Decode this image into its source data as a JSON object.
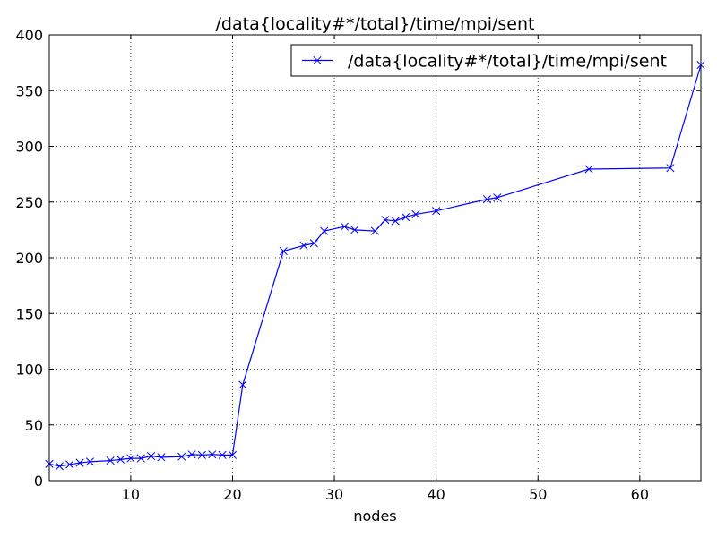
{
  "chart_data": {
    "type": "line",
    "title": "/data{locality#*/total}/time/mpi/sent",
    "xlabel": "nodes",
    "ylabel": "",
    "xlim": [
      2,
      66
    ],
    "ylim": [
      0,
      400
    ],
    "xticks": [
      10,
      20,
      30,
      40,
      50,
      60
    ],
    "yticks": [
      0,
      50,
      100,
      150,
      200,
      250,
      300,
      350,
      400
    ],
    "grid": true,
    "legend_position": "top-right",
    "marker": "x",
    "color": "#0000ff",
    "series": [
      {
        "name": "/data{locality#*/total}/time/mpi/sent",
        "x": [
          2,
          3,
          4,
          5,
          6,
          8,
          9,
          10,
          11,
          12,
          13,
          15,
          16,
          17,
          18,
          19,
          20,
          21,
          25,
          27,
          28,
          29,
          31,
          32,
          34,
          35,
          36,
          37,
          38,
          40,
          45,
          46,
          55,
          63,
          66
        ],
        "y": [
          15,
          13,
          14.5,
          16,
          17,
          18,
          19,
          20,
          20,
          22,
          21,
          21.5,
          23.5,
          23,
          23.5,
          23,
          23,
          86,
          206,
          211,
          213,
          224,
          228,
          225,
          224,
          234,
          233,
          236.5,
          239,
          242,
          252.5,
          254,
          279.5,
          280.5,
          373
        ]
      }
    ]
  }
}
